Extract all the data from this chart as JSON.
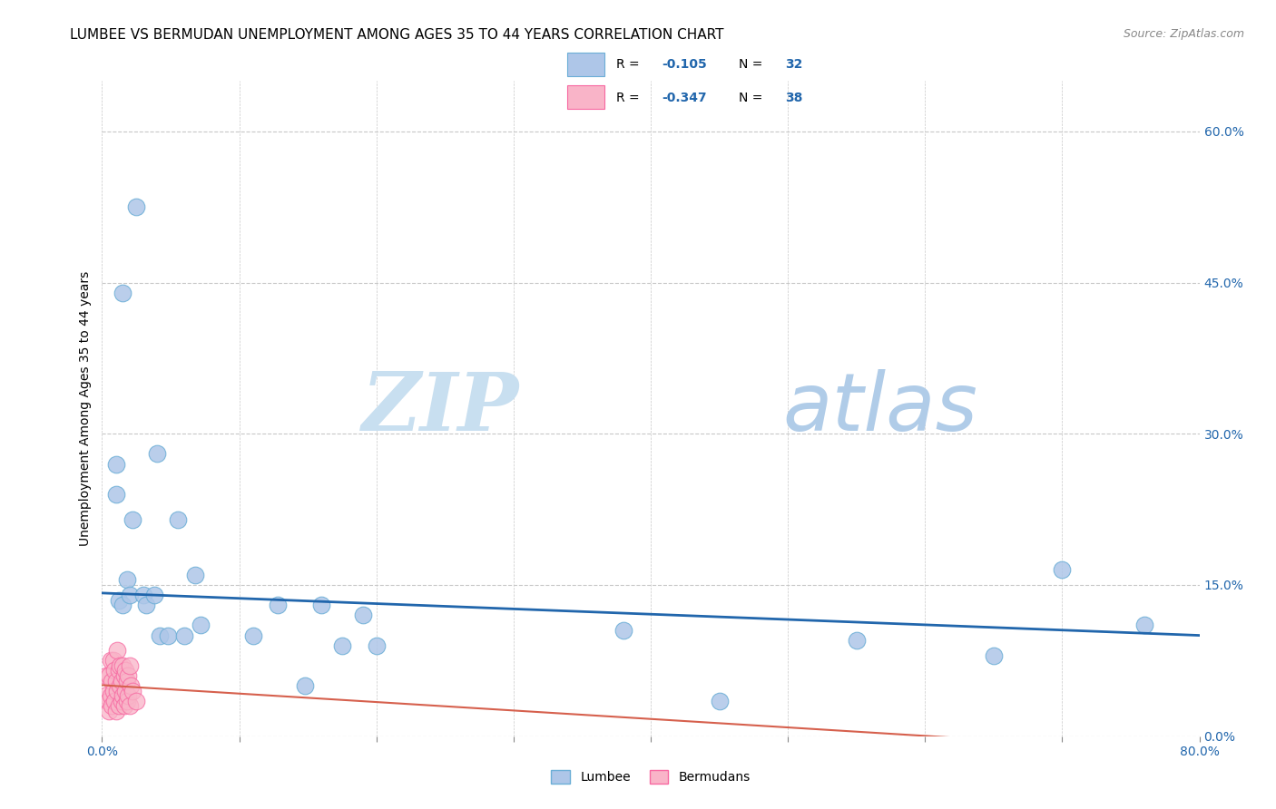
{
  "title": "LUMBEE VS BERMUDAN UNEMPLOYMENT AMONG AGES 35 TO 44 YEARS CORRELATION CHART",
  "source": "Source: ZipAtlas.com",
  "ylabel": "Unemployment Among Ages 35 to 44 years",
  "xlim": [
    0.0,
    0.8
  ],
  "ylim": [
    0.0,
    0.65
  ],
  "xticks": [
    0.0,
    0.1,
    0.2,
    0.3,
    0.4,
    0.5,
    0.6,
    0.7,
    0.8
  ],
  "xticklabels": [
    "0.0%",
    "",
    "",
    "",
    "",
    "",
    "",
    "",
    "80.0%"
  ],
  "yticks_right": [
    0.0,
    0.15,
    0.3,
    0.45,
    0.6
  ],
  "ytick_right_labels": [
    "0.0%",
    "15.0%",
    "30.0%",
    "45.0%",
    "60.0%"
  ],
  "grid_color": "#c8c8c8",
  "lumbee_color": "#aec6e8",
  "lumbee_edge_color": "#6baed6",
  "bermuda_color": "#f9b4c8",
  "bermuda_edge_color": "#f768a1",
  "trend_lumbee_color": "#2166ac",
  "trend_bermuda_color": "#d6604d",
  "lumbee_R": -0.105,
  "lumbee_N": 32,
  "bermuda_R": -0.347,
  "bermuda_N": 38,
  "watermark_zip": "ZIP",
  "watermark_atlas": "atlas",
  "lumbee_x": [
    0.01,
    0.015,
    0.025,
    0.04,
    0.01,
    0.012,
    0.015,
    0.018,
    0.02,
    0.022,
    0.03,
    0.032,
    0.038,
    0.042,
    0.048,
    0.055,
    0.06,
    0.068,
    0.072,
    0.11,
    0.128,
    0.148,
    0.16,
    0.175,
    0.19,
    0.2,
    0.38,
    0.45,
    0.55,
    0.65,
    0.7,
    0.76
  ],
  "lumbee_y": [
    0.27,
    0.44,
    0.525,
    0.28,
    0.24,
    0.135,
    0.13,
    0.155,
    0.14,
    0.215,
    0.14,
    0.13,
    0.14,
    0.1,
    0.1,
    0.215,
    0.1,
    0.16,
    0.11,
    0.1,
    0.13,
    0.05,
    0.13,
    0.09,
    0.12,
    0.09,
    0.105,
    0.035,
    0.095,
    0.08,
    0.165,
    0.11
  ],
  "bermuda_x": [
    0.002,
    0.003,
    0.004,
    0.005,
    0.005,
    0.006,
    0.006,
    0.007,
    0.007,
    0.008,
    0.008,
    0.009,
    0.009,
    0.01,
    0.01,
    0.011,
    0.011,
    0.012,
    0.012,
    0.013,
    0.013,
    0.014,
    0.014,
    0.015,
    0.015,
    0.016,
    0.016,
    0.017,
    0.017,
    0.018,
    0.018,
    0.019,
    0.019,
    0.02,
    0.02,
    0.021,
    0.022,
    0.025
  ],
  "bermuda_y": [
    0.04,
    0.06,
    0.035,
    0.025,
    0.06,
    0.04,
    0.075,
    0.03,
    0.055,
    0.045,
    0.075,
    0.035,
    0.065,
    0.025,
    0.055,
    0.045,
    0.085,
    0.03,
    0.065,
    0.05,
    0.07,
    0.035,
    0.055,
    0.04,
    0.07,
    0.03,
    0.06,
    0.045,
    0.065,
    0.035,
    0.055,
    0.04,
    0.06,
    0.03,
    0.07,
    0.05,
    0.045,
    0.035
  ],
  "legend_lumbee_label": "Lumbee",
  "legend_bermuda_label": "Bermudans",
  "title_fontsize": 11,
  "axis_label_fontsize": 10,
  "tick_fontsize": 10,
  "source_fontsize": 9,
  "trend_lumbee_x0": 0.0,
  "trend_lumbee_y0": 0.142,
  "trend_lumbee_x1": 0.8,
  "trend_lumbee_y1": 0.1
}
